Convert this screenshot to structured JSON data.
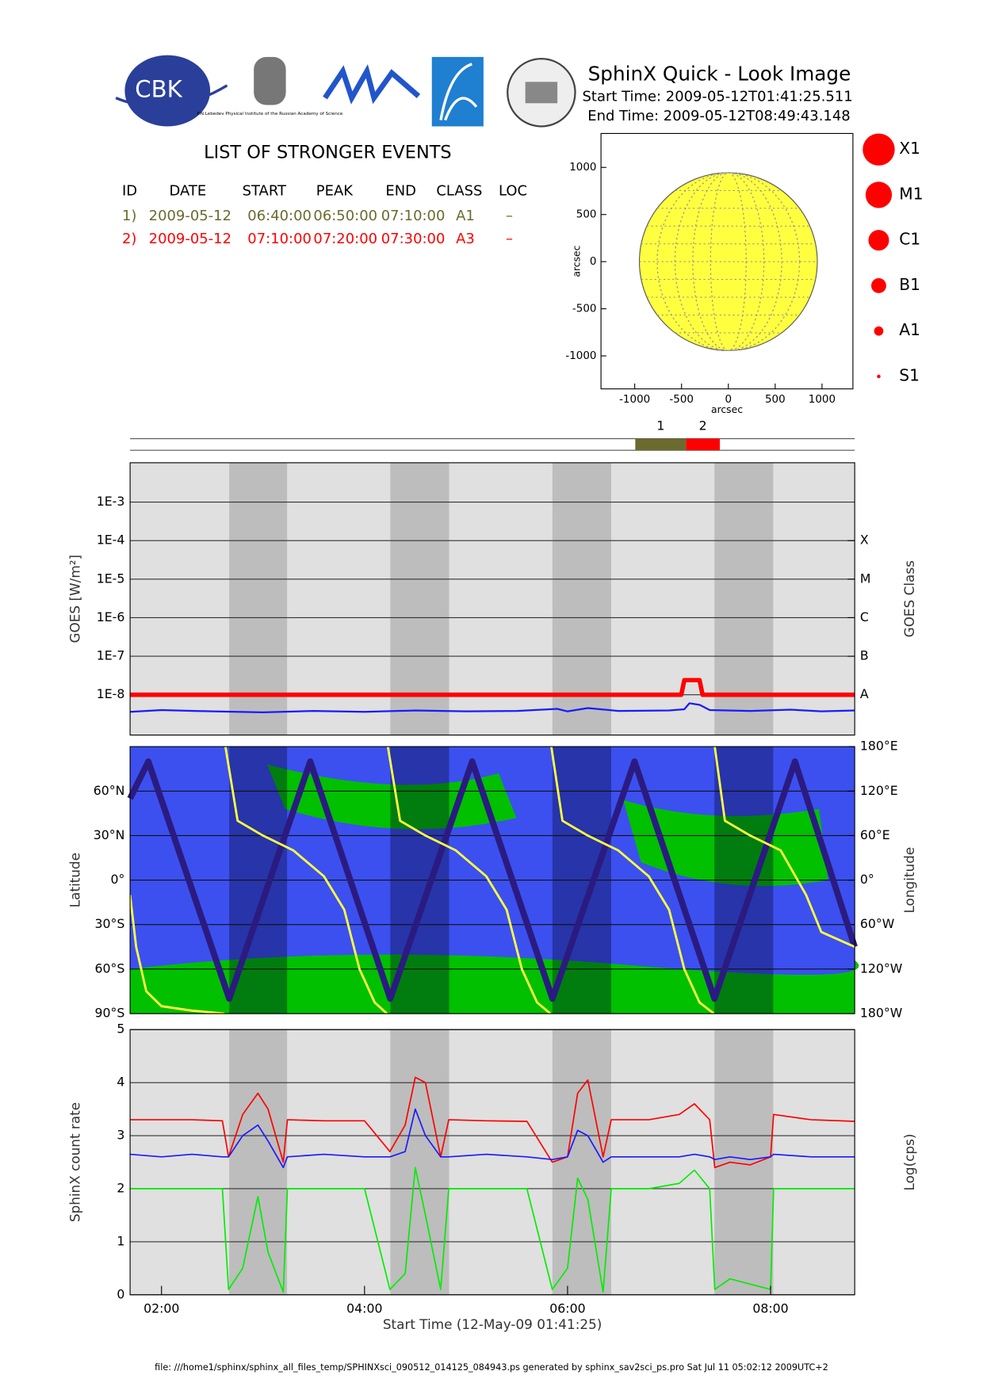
{
  "header": {
    "title": "SphinX Quick - Look Image",
    "start": "Start Time: 2009-05-12T01:41:25.511",
    "end": "End Time: 2009-05-12T08:49:43.148",
    "logo_text": "CBK",
    "institute": "P.N.Lebedev Physical Institute of the Russian Academy of Science"
  },
  "events": {
    "title": "LIST OF STRONGER EVENTS",
    "columns": [
      "ID",
      "DATE",
      "START",
      "PEAK",
      "END",
      "CLASS",
      "LOC"
    ],
    "rows": [
      {
        "cells": [
          "1)",
          "2009-05-12",
          "06:40:00",
          "06:50:00",
          "07:10:00",
          "A1",
          "–"
        ],
        "color": "#6b6b2e"
      },
      {
        "cells": [
          "2)",
          "2009-05-12",
          "07:10:00",
          "07:20:00",
          "07:30:00",
          "A3",
          "–"
        ],
        "color": "#ff0000"
      }
    ]
  },
  "size_classes": {
    "labels": [
      "X1",
      "M1",
      "C1",
      "B1",
      "A1",
      "S1"
    ],
    "color": "#ff0000"
  },
  "orbit": {
    "eclipses": [
      [
        2.667,
        3.237
      ],
      [
        4.254,
        4.833
      ],
      [
        5.851,
        6.43
      ],
      [
        7.447,
        8.026
      ]
    ]
  },
  "chart_data": [
    {
      "type": "disk",
      "xlabel": "arcsec",
      "ylabel": "arcsec",
      "xlim": [
        -1360,
        1330
      ],
      "ylim": [
        -1350,
        1360
      ],
      "xticks": [
        -1000,
        -500,
        0,
        500,
        1000
      ],
      "yticks": [
        -1000,
        -500,
        0,
        500,
        1000
      ],
      "radius": 950,
      "color": "#ffff40"
    },
    {
      "type": "timeline",
      "xlim": [
        1.6904,
        8.8286
      ],
      "labels": [
        "1",
        "2"
      ],
      "start": [
        6.667,
        7.167
      ],
      "end": [
        7.167,
        7.5
      ],
      "colors": [
        "#6b6b30",
        "#ff0000"
      ]
    },
    {
      "type": "line",
      "log_y": true,
      "grid": true,
      "ylabel": "GOES [W/m²]",
      "y2label": "GOES Class",
      "xlim": [
        1.6904,
        8.8286
      ],
      "ylim": [
        9e-10,
        0.0105
      ],
      "yticks": [
        {
          "value": 1e-08,
          "label": "1E-8"
        },
        {
          "value": 1e-07,
          "label": "1E-7"
        },
        {
          "value": 1e-06,
          "label": "1E-6"
        },
        {
          "value": 1e-05,
          "label": "1E-5"
        },
        {
          "value": 0.0001,
          "label": "1E-4"
        },
        {
          "value": 0.001,
          "label": "1E-3"
        }
      ],
      "y2lim": [
        9e-10,
        0.0105
      ],
      "y2ticks": [
        {
          "value": 1e-08,
          "label": "A"
        },
        {
          "value": 1e-07,
          "label": "B"
        },
        {
          "value": 1e-06,
          "label": "C"
        },
        {
          "value": 1e-05,
          "label": "M"
        },
        {
          "value": 0.0001,
          "label": "X"
        }
      ],
      "series": [
        {
          "color": "#ff0000",
          "width": 5,
          "x": [
            1.69,
            7.12,
            7.15,
            7.3,
            7.33,
            8.83
          ],
          "values": [
            1e-08,
            1e-08,
            2.4e-08,
            2.4e-08,
            1e-08,
            1e-08
          ]
        },
        {
          "color": "#1a1aff",
          "width": 2,
          "x": [
            1.69,
            2.0,
            2.5,
            3.0,
            3.5,
            4.0,
            4.5,
            5.0,
            5.5,
            5.9,
            6.0,
            6.2,
            6.5,
            7.0,
            7.15,
            7.2,
            7.3,
            7.4,
            7.8,
            8.2,
            8.5,
            8.83
          ],
          "values": [
            3.6e-09,
            4e-09,
            3.7e-09,
            3.5e-09,
            3.8e-09,
            3.6e-09,
            3.9e-09,
            3.7e-09,
            3.8e-09,
            4.3e-09,
            3.7e-09,
            4.5e-09,
            3.8e-09,
            3.9e-09,
            4.2e-09,
            6e-09,
            5.5e-09,
            4e-09,
            3.8e-09,
            4.1e-09,
            3.7e-09,
            3.9e-09
          ]
        }
      ]
    },
    {
      "type": "track",
      "grid": true,
      "ylabel": "Latitude",
      "y2label": "Longitude",
      "xlim": [
        1.6904,
        8.8286
      ],
      "ylim": [
        -90,
        90
      ],
      "yticks": [
        {
          "value": -90,
          "label": "90°S"
        },
        {
          "value": -60,
          "label": "60°S"
        },
        {
          "value": -30,
          "label": "30°S"
        },
        {
          "value": 0,
          "label": "0°"
        },
        {
          "value": 30,
          "label": "30°N"
        },
        {
          "value": 60,
          "label": "60°N"
        }
      ],
      "y2lim": [
        -180,
        180
      ],
      "y2ticks": [
        {
          "value": -180,
          "label": "180°W"
        },
        {
          "value": -120,
          "label": "120°W"
        },
        {
          "value": -60,
          "label": "60°W"
        },
        {
          "value": 0,
          "label": "0°"
        },
        {
          "value": 60,
          "label": "60°E"
        },
        {
          "value": 120,
          "label": "120°E"
        },
        {
          "value": 180,
          "label": "180°E"
        }
      ],
      "series": [
        {
          "color": "#2b1b80",
          "width": 7,
          "x": [
            1.6904,
            1.87,
            2.667,
            3.465,
            4.254,
            5.06,
            5.851,
            6.66,
            7.447,
            8.24,
            8.8286
          ],
          "values": [
            55,
            80,
            -80,
            80,
            -80,
            80,
            -80,
            80,
            -80,
            80,
            -45
          ]
        },
        {
          "color": "#ffff40",
          "width": 2.5,
          "axis": "y2",
          "x": [
            1.6904,
            1.75,
            1.85,
            2.0,
            2.3,
            2.62,
            2.625,
            2.63,
            2.75,
            3.0,
            3.3,
            3.6,
            3.8,
            3.95,
            4.1,
            4.22,
            4.225,
            4.23,
            4.35,
            4.6,
            4.9,
            5.2,
            5.4,
            5.55,
            5.7,
            5.83,
            5.835,
            5.84,
            5.95,
            6.2,
            6.5,
            6.8,
            7.0,
            7.15,
            7.3,
            7.44,
            7.445,
            7.45,
            7.55,
            7.8,
            8.1,
            8.35,
            8.5,
            8.8286
          ],
          "values": [
            -20,
            -90,
            -150,
            -170,
            -176,
            -180,
            null,
            180,
            80,
            60,
            40,
            5,
            -40,
            -120,
            -165,
            -180,
            null,
            180,
            80,
            60,
            40,
            5,
            -40,
            -120,
            -165,
            -180,
            null,
            180,
            80,
            60,
            40,
            5,
            -40,
            -120,
            -165,
            -180,
            null,
            180,
            80,
            60,
            40,
            -20,
            -70,
            -90
          ]
        }
      ]
    },
    {
      "type": "line",
      "grid": true,
      "ylabel": "SphinX count rate",
      "y2label": "Log(cps)",
      "xlabel": "Start Time (12-May-09 01:41:25)",
      "xlim": [
        1.6904,
        8.8286
      ],
      "ylim": [
        0,
        5
      ],
      "yticks": [
        0,
        1,
        2,
        3,
        4,
        5
      ],
      "xticks": [
        {
          "value": 2,
          "label": "02:00"
        },
        {
          "value": 4,
          "label": "04:00"
        },
        {
          "value": 6,
          "label": "06:00"
        },
        {
          "value": 8,
          "label": "08:00"
        }
      ],
      "x": [
        1.69,
        2.0,
        2.3,
        2.6,
        2.66,
        2.8,
        2.95,
        3.05,
        3.2,
        3.24,
        3.6,
        4.0,
        4.25,
        4.4,
        4.5,
        4.6,
        4.75,
        4.83,
        5.2,
        5.6,
        5.85,
        6.0,
        6.1,
        6.2,
        6.35,
        6.43,
        6.8,
        7.1,
        7.25,
        7.4,
        7.45,
        7.6,
        7.8,
        8.0,
        8.03,
        8.4,
        8.83
      ],
      "series": [
        {
          "color": "#ff0000",
          "width": 1.5,
          "values": [
            3.3,
            3.3,
            3.3,
            3.28,
            2.6,
            3.4,
            3.8,
            3.5,
            2.5,
            3.3,
            3.28,
            3.28,
            2.7,
            3.2,
            4.1,
            4.0,
            2.6,
            3.3,
            3.28,
            3.27,
            2.5,
            2.6,
            3.8,
            4.05,
            2.6,
            3.3,
            3.3,
            3.4,
            3.6,
            3.3,
            2.4,
            2.5,
            2.45,
            2.6,
            3.4,
            3.3,
            3.27
          ]
        },
        {
          "color": "#1a1aff",
          "width": 1.5,
          "values": [
            2.65,
            2.6,
            2.65,
            2.6,
            2.6,
            3.0,
            3.2,
            2.9,
            2.4,
            2.6,
            2.65,
            2.6,
            2.6,
            2.7,
            3.5,
            3.0,
            2.6,
            2.6,
            2.65,
            2.6,
            2.55,
            2.6,
            3.1,
            3.0,
            2.5,
            2.6,
            2.6,
            2.6,
            2.65,
            2.6,
            2.55,
            2.6,
            2.55,
            2.6,
            2.65,
            2.6,
            2.6
          ]
        },
        {
          "color": "#00ee00",
          "width": 1.5,
          "values": [
            2.0,
            2.0,
            2.0,
            2.0,
            0.1,
            0.5,
            1.85,
            0.8,
            0.05,
            2.0,
            2.0,
            2.0,
            0.1,
            0.4,
            2.4,
            1.5,
            0.1,
            2.0,
            2.0,
            2.0,
            0.1,
            0.5,
            2.2,
            1.8,
            0.05,
            2.0,
            2.0,
            2.1,
            2.35,
            2.0,
            0.1,
            0.3,
            0.2,
            0.1,
            2.0,
            2.0,
            2.0
          ]
        }
      ]
    }
  ],
  "footer": "file: ///home1/sphinx/sphinx_all_files_temp/SPHINXsci_090512_014125_084943.ps generated by sphinx_sav2sci_ps.pro Sat Jul 11 05:02:12 2009UTC+2"
}
